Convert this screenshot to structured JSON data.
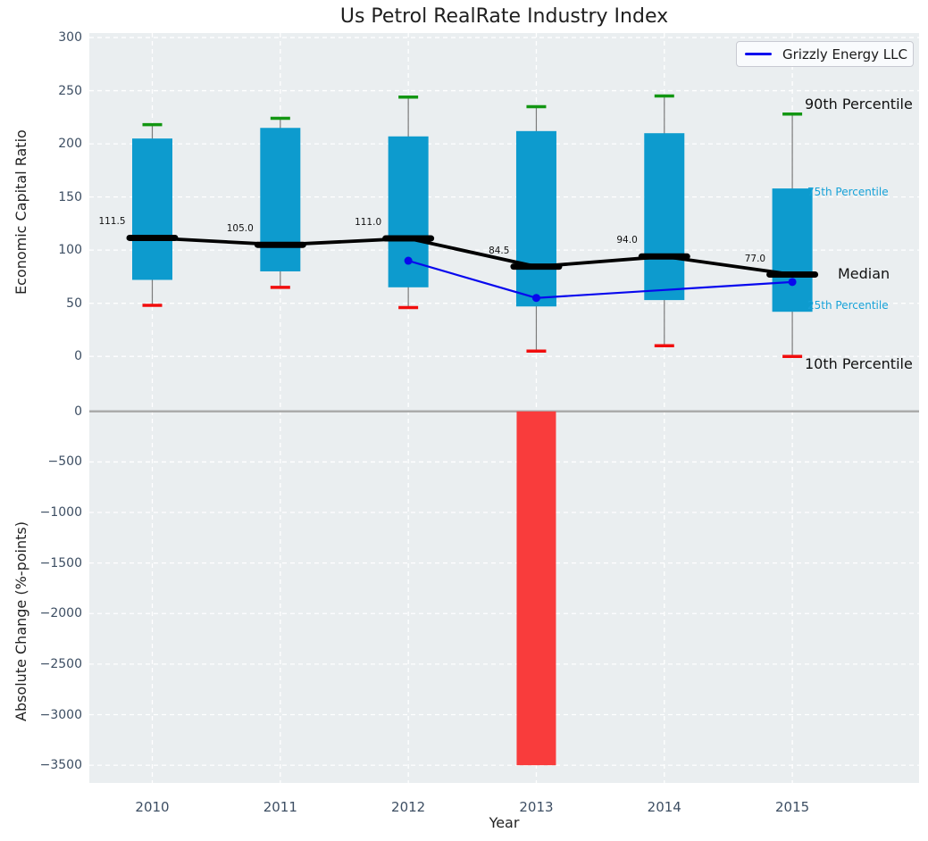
{
  "figure_title": "Us Petrol RealRate Industry Index",
  "colors": {
    "panel_bg": "#eaeef0",
    "grid": "#ffffff",
    "box_fill": "#0d9bce",
    "p90_cap": "#129612",
    "p10_cap": "#f10d0d",
    "whisker": "#7a7a7a",
    "median": "#000000",
    "company_line": "#0808ee",
    "bar_negative": "#f93c3c",
    "zero_line": "#ababab",
    "tick_text": "#3d4e63",
    "percentile_label_cyan": "#17a2d8"
  },
  "chart_data": [
    {
      "type": "boxplot",
      "title": "Us Petrol RealRate Industry Index",
      "xlabel": "Year",
      "ylabel": "Economic Capital Ratio",
      "ylim": [
        0,
        300
      ],
      "yticks": [
        0,
        50,
        100,
        150,
        200,
        250,
        300
      ],
      "grid": true,
      "categories": [
        "2010",
        "2011",
        "2012",
        "2013",
        "2014",
        "2015"
      ],
      "percentile_boxes": [
        {
          "year": "2010",
          "p10": 48,
          "p25": 72,
          "median": 111.5,
          "p75": 205,
          "p90": 218
        },
        {
          "year": "2011",
          "p10": 65,
          "p25": 80,
          "median": 105.0,
          "p75": 215,
          "p90": 224
        },
        {
          "year": "2012",
          "p10": 46,
          "p25": 65,
          "median": 111.0,
          "p75": 207,
          "p90": 244
        },
        {
          "year": "2013",
          "p10": 5,
          "p25": 47,
          "median": 84.5,
          "p75": 212,
          "p90": 235
        },
        {
          "year": "2014",
          "p10": 10,
          "p25": 53,
          "median": 94.0,
          "p75": 210,
          "p90": 245
        },
        {
          "year": "2015",
          "p10": 0,
          "p25": 42,
          "median": 77.0,
          "p75": 158,
          "p90": 228
        }
      ],
      "median_labels": [
        "111.5",
        "105.0",
        "111.0",
        "84.5",
        "94.0",
        "77.0"
      ],
      "series": [
        {
          "name": "Grizzly Energy LLC",
          "points": [
            {
              "year": "2012",
              "value": 90,
              "marker": true
            },
            {
              "year": "2013",
              "value": 55,
              "marker": true
            },
            {
              "year": "2014",
              "value": 62.5,
              "marker": false
            },
            {
              "year": "2015",
              "value": 70,
              "marker": true
            }
          ]
        }
      ],
      "annotations": [
        {
          "text": "90th Percentile",
          "style": "large"
        },
        {
          "text": "75th Percentile",
          "style": "small-cyan"
        },
        {
          "text": "Median",
          "style": "large"
        },
        {
          "text": "25th Percentile",
          "style": "small-cyan"
        },
        {
          "text": "10th Percentile",
          "style": "large"
        }
      ],
      "legend_position": "upper right"
    },
    {
      "type": "bar",
      "xlabel": "Year",
      "ylabel": "Absolute Change (%-points)",
      "ylim": [
        -3500,
        0
      ],
      "yticks": [
        0,
        -500,
        -1000,
        -1500,
        -2000,
        -2500,
        -3000,
        -3500
      ],
      "grid": true,
      "categories": [
        "2010",
        "2011",
        "2012",
        "2013",
        "2014",
        "2015"
      ],
      "values": [
        null,
        null,
        null,
        -3500,
        null,
        null
      ]
    }
  ]
}
